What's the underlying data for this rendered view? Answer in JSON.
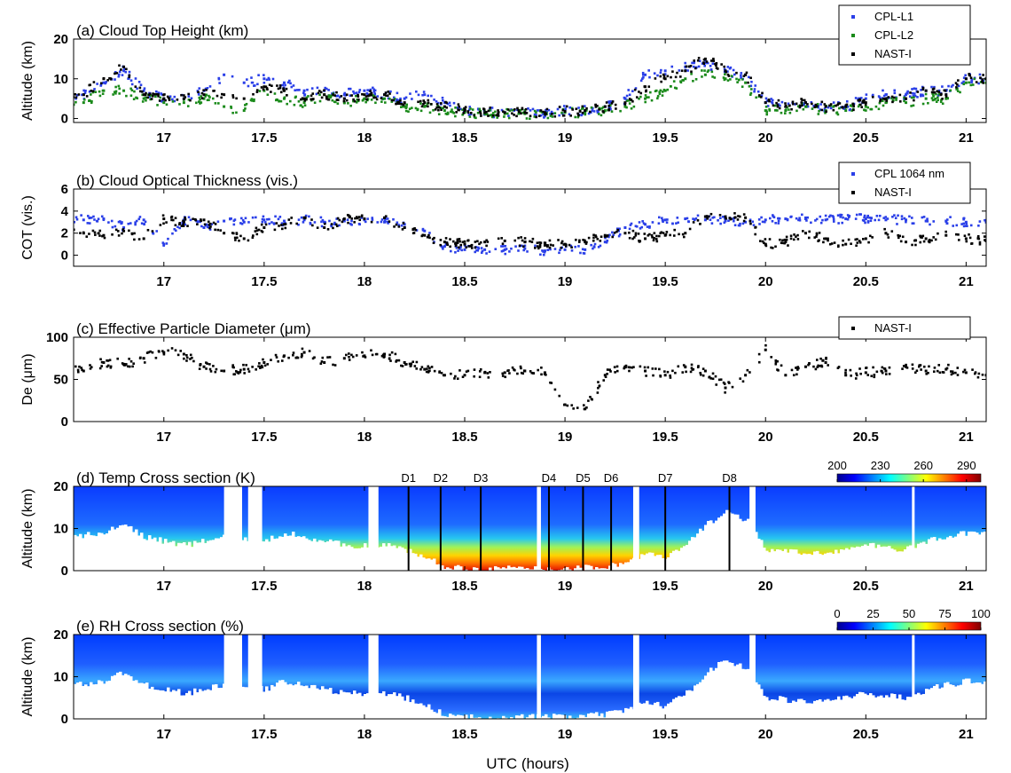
{
  "chart_data": [
    {
      "type": "scatter",
      "title": "(a) Cloud Top Height (km)",
      "ylabel": "Altitude (km)",
      "xlim": [
        16.55,
        21.1
      ],
      "ylim": [
        -1,
        20
      ],
      "xticks": [
        "17",
        "17.5",
        "18",
        "18.5",
        "19",
        "19.5",
        "20",
        "20.5",
        "21"
      ],
      "yticks": [
        "0",
        "10",
        "20"
      ],
      "legend_position": "top-right",
      "series": [
        {
          "name": "CPL-L1",
          "color": "#2a3fe8",
          "x": [
            16.6,
            16.7,
            16.8,
            16.9,
            17.0,
            17.1,
            17.2,
            17.3,
            17.4,
            17.5,
            17.6,
            17.7,
            17.8,
            17.9,
            18.0,
            18.1,
            18.2,
            18.3,
            18.4,
            18.5,
            18.6,
            18.7,
            18.8,
            18.9,
            19.0,
            19.1,
            19.2,
            19.3,
            19.4,
            19.5,
            19.6,
            19.7,
            19.8,
            19.9,
            20.0,
            20.1,
            20.2,
            20.3,
            20.4,
            20.5,
            20.6,
            20.7,
            20.8,
            20.9,
            21.0,
            21.1
          ],
          "y": [
            6,
            9,
            12,
            7,
            5,
            5,
            7,
            11,
            9,
            10,
            9,
            7,
            7,
            6,
            7,
            6,
            5,
            6,
            4,
            2,
            1.5,
            1.5,
            1.5,
            1.5,
            2,
            2,
            3,
            5,
            11,
            12,
            13,
            14,
            12,
            11,
            4,
            3,
            4,
            3,
            3,
            5,
            6,
            6,
            7,
            7,
            10,
            10
          ]
        },
        {
          "name": "CPL-L2",
          "color": "#1a8a1a",
          "x": [
            16.6,
            16.7,
            16.8,
            16.9,
            17.0,
            17.1,
            17.2,
            17.3,
            17.4,
            17.5,
            17.6,
            17.7,
            17.8,
            17.9,
            18.0,
            18.1,
            18.2,
            18.3,
            18.4,
            18.5,
            18.6,
            18.7,
            18.8,
            18.9,
            19.0,
            19.1,
            19.2,
            19.3,
            19.4,
            19.5,
            19.6,
            19.7,
            19.8,
            19.9,
            20.0,
            20.1,
            20.2,
            20.3,
            20.4,
            20.5,
            20.6,
            20.7,
            20.8,
            20.9,
            21.0,
            21.1
          ],
          "y": [
            4,
            7,
            7,
            5,
            4,
            4,
            5,
            3,
            2,
            7,
            5,
            4,
            6,
            4,
            5,
            5,
            3,
            3,
            2,
            1.5,
            1.2,
            1.2,
            1.2,
            1.2,
            1.5,
            1.5,
            2,
            3,
            5,
            7,
            10,
            11,
            10,
            9,
            2,
            2,
            3,
            2,
            2,
            3,
            4,
            4,
            5,
            5,
            9,
            9
          ]
        },
        {
          "name": "NAST-I",
          "color": "#000000",
          "x": [
            16.6,
            16.7,
            16.8,
            16.9,
            17.0,
            17.1,
            17.2,
            17.3,
            17.4,
            17.5,
            17.6,
            17.7,
            17.8,
            17.9,
            18.0,
            18.1,
            18.2,
            18.3,
            18.4,
            18.5,
            18.6,
            18.7,
            18.8,
            18.9,
            19.0,
            19.1,
            19.2,
            19.3,
            19.4,
            19.5,
            19.6,
            19.7,
            19.8,
            19.9,
            20.0,
            20.1,
            20.2,
            20.3,
            20.4,
            20.5,
            20.6,
            20.7,
            20.8,
            20.9,
            21.0,
            21.1
          ],
          "y": [
            6,
            10,
            13,
            6,
            5,
            5,
            6,
            6,
            5,
            8,
            7,
            5,
            6,
            5,
            6,
            6,
            4,
            4,
            3,
            2,
            1.5,
            1.5,
            1.5,
            1.5,
            1.8,
            2,
            3,
            4,
            8,
            10,
            12,
            15,
            12,
            11,
            4,
            3,
            4,
            3,
            3,
            4,
            5,
            5,
            7,
            6,
            10,
            10
          ]
        }
      ]
    },
    {
      "type": "scatter",
      "title": "(b) Cloud Optical Thickness (vis.)",
      "ylabel": "COT (vis.)",
      "xlim": [
        16.55,
        21.1
      ],
      "ylim": [
        -1,
        6
      ],
      "xticks": [
        "17",
        "17.5",
        "18",
        "18.5",
        "19",
        "19.5",
        "20",
        "20.5",
        "21"
      ],
      "yticks": [
        "0",
        "2",
        "4",
        "6"
      ],
      "legend_position": "top-right",
      "series": [
        {
          "name": "CPL 1064 nm",
          "color": "#2a3fe8",
          "x": [
            16.6,
            16.7,
            16.8,
            16.9,
            17.0,
            17.1,
            17.2,
            17.3,
            17.4,
            17.5,
            17.6,
            17.7,
            17.8,
            17.9,
            18.0,
            18.1,
            18.2,
            18.3,
            18.4,
            18.5,
            18.6,
            18.7,
            18.8,
            18.9,
            19.0,
            19.1,
            19.2,
            19.3,
            19.4,
            19.5,
            19.6,
            19.7,
            19.8,
            19.9,
            20.0,
            20.1,
            20.2,
            20.3,
            20.4,
            20.5,
            20.6,
            20.7,
            20.8,
            20.9,
            21.0,
            21.1
          ],
          "y": [
            3.2,
            3.3,
            2.5,
            3.2,
            1.0,
            3.2,
            2.5,
            3.1,
            3.0,
            3.2,
            3.1,
            3.2,
            3.0,
            3.1,
            3.2,
            3.0,
            2.8,
            2.2,
            0.8,
            0.5,
            0.5,
            0.5,
            0.6,
            0.4,
            0.5,
            0.5,
            1.2,
            2.5,
            2.8,
            3.2,
            3.3,
            3.2,
            3.1,
            3.0,
            3.2,
            3.3,
            3.3,
            3.2,
            3.3,
            3.3,
            3.2,
            3.2,
            3.1,
            3.1,
            3.0,
            3.0
          ]
        },
        {
          "name": "NAST-I",
          "color": "#000000",
          "x": [
            16.6,
            16.7,
            16.8,
            16.9,
            17.0,
            17.1,
            17.2,
            17.3,
            17.4,
            17.5,
            17.6,
            17.7,
            17.8,
            17.9,
            18.0,
            18.1,
            18.2,
            18.3,
            18.4,
            18.5,
            18.6,
            18.7,
            18.8,
            18.9,
            19.0,
            19.1,
            19.2,
            19.3,
            19.4,
            19.5,
            19.6,
            19.7,
            19.8,
            19.9,
            20.0,
            20.1,
            20.2,
            20.3,
            20.4,
            20.5,
            20.6,
            20.7,
            20.8,
            20.9,
            21.0,
            21.1
          ],
          "y": [
            2.0,
            1.8,
            2.2,
            1.5,
            3.3,
            3.0,
            3.2,
            2.0,
            1.5,
            2.5,
            2.8,
            3.4,
            2.5,
            3.3,
            3.3,
            3.4,
            2.5,
            1.8,
            1.2,
            1.0,
            1.2,
            1.3,
            1.2,
            0.9,
            1.0,
            1.2,
            1.8,
            2.0,
            1.5,
            1.8,
            2.0,
            3.5,
            3.5,
            3.4,
            1.0,
            1.2,
            2.0,
            1.5,
            1.0,
            1.5,
            2.0,
            1.2,
            1.5,
            1.8,
            1.5,
            1.3
          ]
        }
      ]
    },
    {
      "type": "scatter",
      "title": "(c) Effective Particle Diameter (μm)",
      "ylabel": "De (μm)",
      "xlim": [
        16.55,
        21.1
      ],
      "ylim": [
        0,
        100
      ],
      "xticks": [
        "17",
        "17.5",
        "18",
        "18.5",
        "19",
        "19.5",
        "20",
        "20.5",
        "21"
      ],
      "yticks": [
        "0",
        "50",
        "100"
      ],
      "legend_position": "top-right",
      "series": [
        {
          "name": "NAST-I",
          "color": "#000000",
          "x": [
            16.6,
            16.7,
            16.8,
            16.9,
            17.0,
            17.1,
            17.2,
            17.3,
            17.4,
            17.5,
            17.6,
            17.7,
            17.8,
            17.9,
            18.0,
            18.1,
            18.2,
            18.3,
            18.4,
            18.5,
            18.6,
            18.7,
            18.8,
            18.9,
            19.0,
            19.1,
            19.2,
            19.3,
            19.4,
            19.5,
            19.6,
            19.7,
            19.8,
            19.9,
            20.0,
            20.1,
            20.2,
            20.3,
            20.4,
            20.5,
            20.6,
            20.7,
            20.8,
            20.9,
            21.0,
            21.1
          ],
          "y": [
            60,
            70,
            68,
            75,
            82,
            80,
            65,
            60,
            62,
            70,
            78,
            82,
            70,
            75,
            78,
            80,
            70,
            62,
            55,
            55,
            58,
            58,
            60,
            58,
            20,
            15,
            55,
            65,
            60,
            55,
            65,
            60,
            40,
            55,
            85,
            55,
            65,
            70,
            55,
            58,
            60,
            65,
            60,
            62,
            58,
            55
          ]
        }
      ]
    },
    {
      "type": "heatmap",
      "title": "(d) Temp Cross section (K)",
      "ylabel": "Altitude (km)",
      "xlim": [
        16.55,
        21.1
      ],
      "ylim": [
        0,
        20
      ],
      "xticks": [
        "17",
        "17.5",
        "18",
        "18.5",
        "19",
        "19.5",
        "20",
        "20.5",
        "21"
      ],
      "yticks": [
        "0",
        "10",
        "20"
      ],
      "colorbar": {
        "ticks": [
          "200",
          "230",
          "260",
          "290"
        ],
        "min": 200,
        "max": 300
      },
      "markers": [
        {
          "label": "D1",
          "x": 18.22
        },
        {
          "label": "D2",
          "x": 18.38
        },
        {
          "label": "D3",
          "x": 18.58
        },
        {
          "label": "D4",
          "x": 18.92
        },
        {
          "label": "D5",
          "x": 19.09
        },
        {
          "label": "D6",
          "x": 19.23
        },
        {
          "label": "D7",
          "x": 19.5
        },
        {
          "label": "D8",
          "x": 19.82
        }
      ],
      "gaps": [
        [
          17.3,
          17.39
        ],
        [
          17.42,
          17.49
        ],
        [
          18.02,
          18.07
        ],
        [
          18.86,
          18.88
        ],
        [
          19.34,
          19.37
        ],
        [
          19.92,
          19.95
        ],
        [
          20.73,
          20.74
        ]
      ]
    },
    {
      "type": "heatmap",
      "title": "(e) RH Cross section (%)",
      "ylabel": "Altitude (km)",
      "xlabel": "UTC (hours)",
      "xlim": [
        16.55,
        21.1
      ],
      "ylim": [
        0,
        20
      ],
      "xticks": [
        "17",
        "17.5",
        "18",
        "18.5",
        "19",
        "19.5",
        "20",
        "20.5",
        "21"
      ],
      "yticks": [
        "0",
        "10",
        "20"
      ],
      "colorbar": {
        "ticks": [
          "0",
          "25",
          "50",
          "75",
          "100"
        ],
        "min": 0,
        "max": 100
      },
      "gaps": [
        [
          17.3,
          17.39
        ],
        [
          17.42,
          17.49
        ],
        [
          18.02,
          18.07
        ],
        [
          18.86,
          18.88
        ],
        [
          19.34,
          19.37
        ],
        [
          19.92,
          19.95
        ],
        [
          20.73,
          20.74
        ]
      ]
    }
  ]
}
